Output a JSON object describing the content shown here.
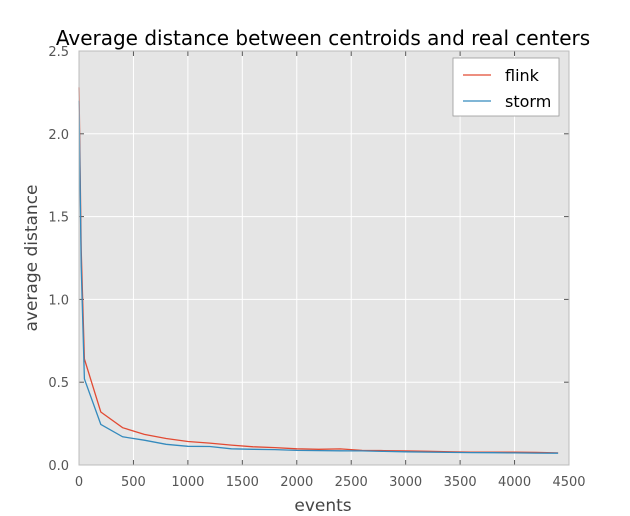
{
  "chart_data": {
    "type": "line",
    "title": "Average distance between centroids and real centers",
    "xlabel": "events",
    "ylabel": "average distance",
    "xlim": [
      0,
      4500
    ],
    "ylim": [
      0,
      2.5
    ],
    "xticks": [
      0,
      500,
      1000,
      1500,
      2000,
      2500,
      3000,
      3500,
      4000,
      4500
    ],
    "yticks": [
      0.0,
      0.5,
      1.0,
      1.5,
      2.0,
      2.5
    ],
    "xtick_labels": [
      "0",
      "500",
      "1000",
      "1500",
      "2000",
      "2500",
      "3000",
      "3500",
      "4000",
      "4500"
    ],
    "ytick_labels": [
      "0.0",
      "0.5",
      "1.0",
      "1.5",
      "2.0",
      "2.5"
    ],
    "grid": true,
    "legend_position": "top-right",
    "series": [
      {
        "name": "flink",
        "color": "#e24a33",
        "x": [
          0,
          20,
          50,
          200,
          400,
          600,
          800,
          1000,
          1200,
          1400,
          1600,
          1800,
          2000,
          2200,
          2400,
          2600,
          2800,
          3000,
          3200,
          3400,
          3600,
          3800,
          4000,
          4200,
          4400
        ],
        "y": [
          2.28,
          1.3,
          0.64,
          0.32,
          0.225,
          0.185,
          0.16,
          0.142,
          0.132,
          0.12,
          0.11,
          0.105,
          0.098,
          0.095,
          0.097,
          0.088,
          0.087,
          0.085,
          0.083,
          0.08,
          0.078,
          0.078,
          0.077,
          0.076,
          0.073
        ]
      },
      {
        "name": "storm",
        "color": "#348abd",
        "x": [
          0,
          20,
          50,
          200,
          400,
          600,
          800,
          1000,
          1200,
          1400,
          1600,
          1800,
          2000,
          2200,
          2400,
          2600,
          2800,
          3000,
          3200,
          3400,
          3600,
          3800,
          4000,
          4200,
          4400
        ],
        "y": [
          2.2,
          1.2,
          0.52,
          0.245,
          0.17,
          0.15,
          0.125,
          0.113,
          0.112,
          0.098,
          0.095,
          0.093,
          0.088,
          0.087,
          0.086,
          0.085,
          0.082,
          0.08,
          0.078,
          0.076,
          0.075,
          0.074,
          0.073,
          0.072,
          0.071
        ]
      }
    ]
  }
}
